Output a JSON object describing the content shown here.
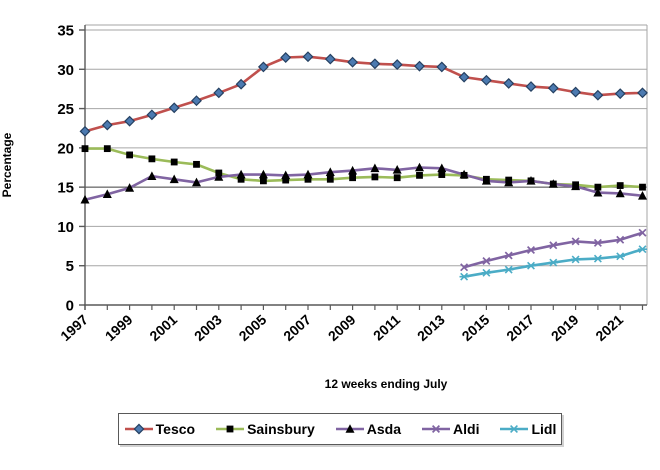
{
  "chart_data": {
    "type": "line",
    "title": "",
    "xlabel": "12 weeks ending July",
    "ylabel": "Percentage",
    "ylim": [
      0,
      35
    ],
    "yticks": [
      0,
      5,
      10,
      15,
      20,
      25,
      30,
      35
    ],
    "dark_gridline_at": 15,
    "grid": "horizontal",
    "legend_position": "bottom",
    "x": [
      1997,
      1998,
      1999,
      2000,
      2001,
      2002,
      2003,
      2004,
      2005,
      2006,
      2007,
      2008,
      2009,
      2010,
      2011,
      2012,
      2013,
      2014,
      2015,
      2016,
      2017,
      2018,
      2019,
      2020,
      2021,
      2022
    ],
    "xtick_label_every": 2,
    "colors": {
      "tesco_line": "#C0504D",
      "tesco_marker_fill": "#4C7AB0",
      "tesco_marker_edge": "#254061",
      "sainsbury_line": "#9BBB59",
      "asda_line": "#8064A2",
      "aldi_line": "#8064A2",
      "lidl_line": "#4BACC6",
      "black_marker": "#000000",
      "gridline": "#A6A6A6",
      "dark_gridline": "#3F3F3F",
      "axis": "#595959"
    },
    "series": [
      {
        "name": "Tesco",
        "marker": "diamond",
        "values": [
          22.1,
          22.9,
          23.4,
          24.2,
          25.1,
          26.0,
          27.0,
          28.1,
          30.3,
          31.5,
          31.6,
          31.3,
          30.9,
          30.7,
          30.6,
          30.4,
          30.3,
          29.0,
          28.6,
          28.2,
          27.8,
          27.6,
          27.1,
          26.7,
          26.9,
          27.0
        ]
      },
      {
        "name": "Sainsbury",
        "marker": "square",
        "values": [
          19.9,
          19.9,
          19.1,
          18.6,
          18.2,
          17.9,
          16.8,
          16.0,
          15.8,
          15.9,
          16.0,
          16.0,
          16.2,
          16.3,
          16.2,
          16.5,
          16.6,
          16.5,
          16.0,
          15.9,
          15.8,
          15.4,
          15.3,
          15.0,
          15.2,
          15.0
        ]
      },
      {
        "name": "Asda",
        "marker": "triangle",
        "values": [
          13.4,
          14.1,
          14.9,
          16.4,
          16.0,
          15.6,
          16.3,
          16.6,
          16.6,
          16.5,
          16.6,
          16.9,
          17.1,
          17.4,
          17.2,
          17.5,
          17.4,
          16.6,
          15.8,
          15.6,
          15.8,
          15.4,
          15.1,
          14.3,
          14.2,
          13.9
        ]
      },
      {
        "name": "Aldi",
        "marker": "x",
        "values": [
          null,
          null,
          null,
          null,
          null,
          null,
          null,
          null,
          null,
          null,
          null,
          null,
          null,
          null,
          null,
          null,
          null,
          4.8,
          5.6,
          6.3,
          7.0,
          7.6,
          8.1,
          7.9,
          8.3,
          9.2
        ]
      },
      {
        "name": "Lidl",
        "marker": "star",
        "values": [
          null,
          null,
          null,
          null,
          null,
          null,
          null,
          null,
          null,
          null,
          null,
          null,
          null,
          null,
          null,
          null,
          null,
          3.6,
          4.1,
          4.5,
          5.0,
          5.4,
          5.8,
          5.9,
          6.2,
          7.1
        ]
      }
    ]
  }
}
